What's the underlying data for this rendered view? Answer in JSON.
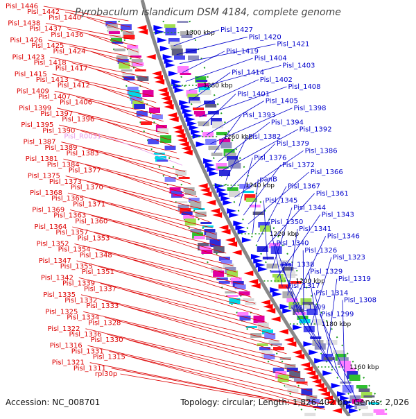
{
  "title": "Pyrobaculum islandicum DSM 4184, complete genome",
  "footer": {
    "accession": "Accession: NC_008701",
    "summary": "Topology: circular; Length: 1,826,402 bp; Genes: 2,026"
  },
  "colors": {
    "reverse_label": "#dd0000",
    "forward_label": "#0000cc",
    "rna_label": "#e89ae8",
    "backbone": "#888888",
    "reverse_arrow": "#ff0000",
    "forward_arrow": "#0000ff"
  },
  "ruler": [
    {
      "text": "1300 kbp"
    },
    {
      "text": "1280 kbp"
    },
    {
      "text": "1260 kbp"
    },
    {
      "text": "1240 kbp"
    },
    {
      "text": "1220 kbp"
    },
    {
      "text": "1200 kbp"
    },
    {
      "text": "1180 kbp"
    },
    {
      "text": "1160 kbp"
    }
  ],
  "labels_left": [
    "Pisl_1446",
    "Pisl_1442",
    "Pisl_1440",
    "Pisl_1438",
    "Pisl_1437",
    "Pisl_1436",
    "Pisl_1426",
    "Pisl_1425",
    "Pisl_1424",
    "Pisl_1423",
    "Pisl_1418",
    "Pisl_1417",
    "Pisl_1415",
    "Pisl_1413",
    "Pisl_1412",
    "Pisl_1409",
    "Pisl_1407",
    "Pisl_1406",
    "Pisl_1399",
    "Pisl_1397",
    "Pisl_1396",
    "Pisl_1395",
    "Pisl_1390",
    "Pisl_R0031",
    "Pisl_1387",
    "Pisl_1389",
    "Pisl_1383",
    "Pisl_1381",
    "Pisl_1384",
    "Pisl_1377",
    "Pisl_1375",
    "Pisl_1373",
    "Pisl_1370",
    "Pisl_1368",
    "Pisl_1365",
    "Pisl_1371",
    "Pisl_1369",
    "Pisl_1363",
    "Pisl_1360",
    "Pisl_1364",
    "Pisl_1357",
    "Pisl_1353",
    "Pisl_1352",
    "Pisl_1354",
    "Pisl_1348",
    "Pisl_1347",
    "Pisl_1355",
    "Pisl_1351",
    "Pisl_1342",
    "Pisl_1339",
    "Pisl_1337",
    "Pisl_1335",
    "Pisl_1332",
    "Pisl_1333",
    "Pisl_1325",
    "Pisl_1334",
    "Pisl_1328",
    "Pisl_1322",
    "Pisl_1336",
    "Pisl_1330",
    "Pisl_1316",
    "Pisl_1331",
    "Pisl_1315",
    "Pisl_1321",
    "Pisl_1311",
    "rpl30p"
  ],
  "labels_right": [
    "Pisl_1427",
    "Pisl_1420",
    "Pisl_1421",
    "Pisl_1419",
    "Pisl_1404",
    "Pisl_1403",
    "Pisl_1414",
    "Pisl_1402",
    "Pisl_1408",
    "Pisl_1401",
    "Pisl_1405",
    "Pisl_1398",
    "Pisl_1393",
    "Pisl_1394",
    "Pisl_1392",
    "Pisl_1382",
    "Pisl_1379",
    "Pisl_1386",
    "Pisl_1376",
    "Pisl_1372",
    "Pisl_1366",
    "panB",
    "Pisl_1367",
    "Pisl_1361",
    "Pisl_1345",
    "Pisl_1344",
    "Pisl_1343",
    "Pisl_1350",
    "Pisl_1341",
    "Pisl_1346",
    "Pisl_1340",
    "Pisl_1326",
    "Pisl_1323",
    "Pisl_1338",
    "Pisl_1329",
    "Pisl_1319",
    "Pisl_1317",
    "Pisl_1314",
    "Pisl_1308",
    "Pisl_1309",
    "Pisl_1299"
  ]
}
